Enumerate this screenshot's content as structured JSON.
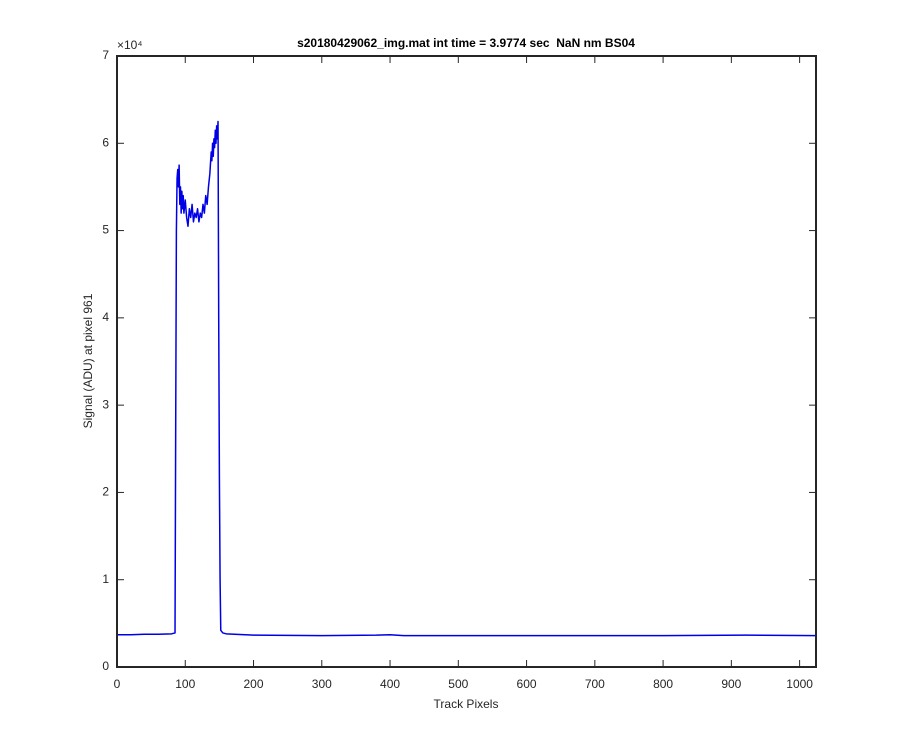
{
  "chart_data": {
    "type": "line",
    "title": "s20180429062_img.mat int time = 3.9774 sec  NaN nm BS04",
    "x_label": "Track Pixels",
    "y_label": "Signal (ADU) at pixel 961",
    "y_exponent_label": "×10⁴",
    "xlim": [
      0,
      1024
    ],
    "xticks": [
      0,
      100,
      200,
      300,
      400,
      500,
      600,
      700,
      800,
      900,
      1000
    ],
    "ylim": [
      0,
      70000
    ],
    "yticks": [
      {
        "value": 0,
        "label": "0"
      },
      {
        "value": 10000,
        "label": "1"
      },
      {
        "value": 20000,
        "label": "2"
      },
      {
        "value": 30000,
        "label": "3"
      },
      {
        "value": 40000,
        "label": "4"
      },
      {
        "value": 50000,
        "label": "5"
      },
      {
        "value": 60000,
        "label": "6"
      },
      {
        "value": 70000,
        "label": "7"
      }
    ],
    "grid": false,
    "x": [
      0,
      20,
      40,
      60,
      80,
      85,
      86,
      87,
      88,
      89,
      90,
      91,
      92,
      93,
      94,
      95,
      96,
      97,
      98,
      100,
      102,
      104,
      106,
      108,
      110,
      112,
      114,
      116,
      118,
      120,
      122,
      124,
      126,
      128,
      130,
      132,
      134,
      136,
      138,
      139,
      140,
      141,
      142,
      143,
      144,
      145,
      146,
      147,
      148,
      149,
      150,
      151,
      152,
      155,
      160,
      200,
      300,
      380,
      400,
      420,
      600,
      800,
      920,
      1024
    ],
    "series": [
      {
        "color": "#0000e6",
        "values": [
          3700,
          3700,
          3750,
          3750,
          3800,
          3900,
          28000,
          50000,
          56000,
          57000,
          55000,
          57500,
          53000,
          55000,
          52000,
          54500,
          52500,
          54000,
          52000,
          53500,
          51500,
          50500,
          52500,
          51500,
          53000,
          51000,
          52000,
          51500,
          52500,
          51000,
          52000,
          51500,
          53000,
          52000,
          54000,
          53000,
          55000,
          56500,
          59000,
          58000,
          60000,
          58500,
          60500,
          59500,
          61500,
          60000,
          62000,
          60500,
          62500,
          40000,
          22000,
          10000,
          4200,
          3900,
          3800,
          3650,
          3600,
          3650,
          3700,
          3600,
          3600,
          3600,
          3650,
          3600
        ]
      }
    ]
  }
}
